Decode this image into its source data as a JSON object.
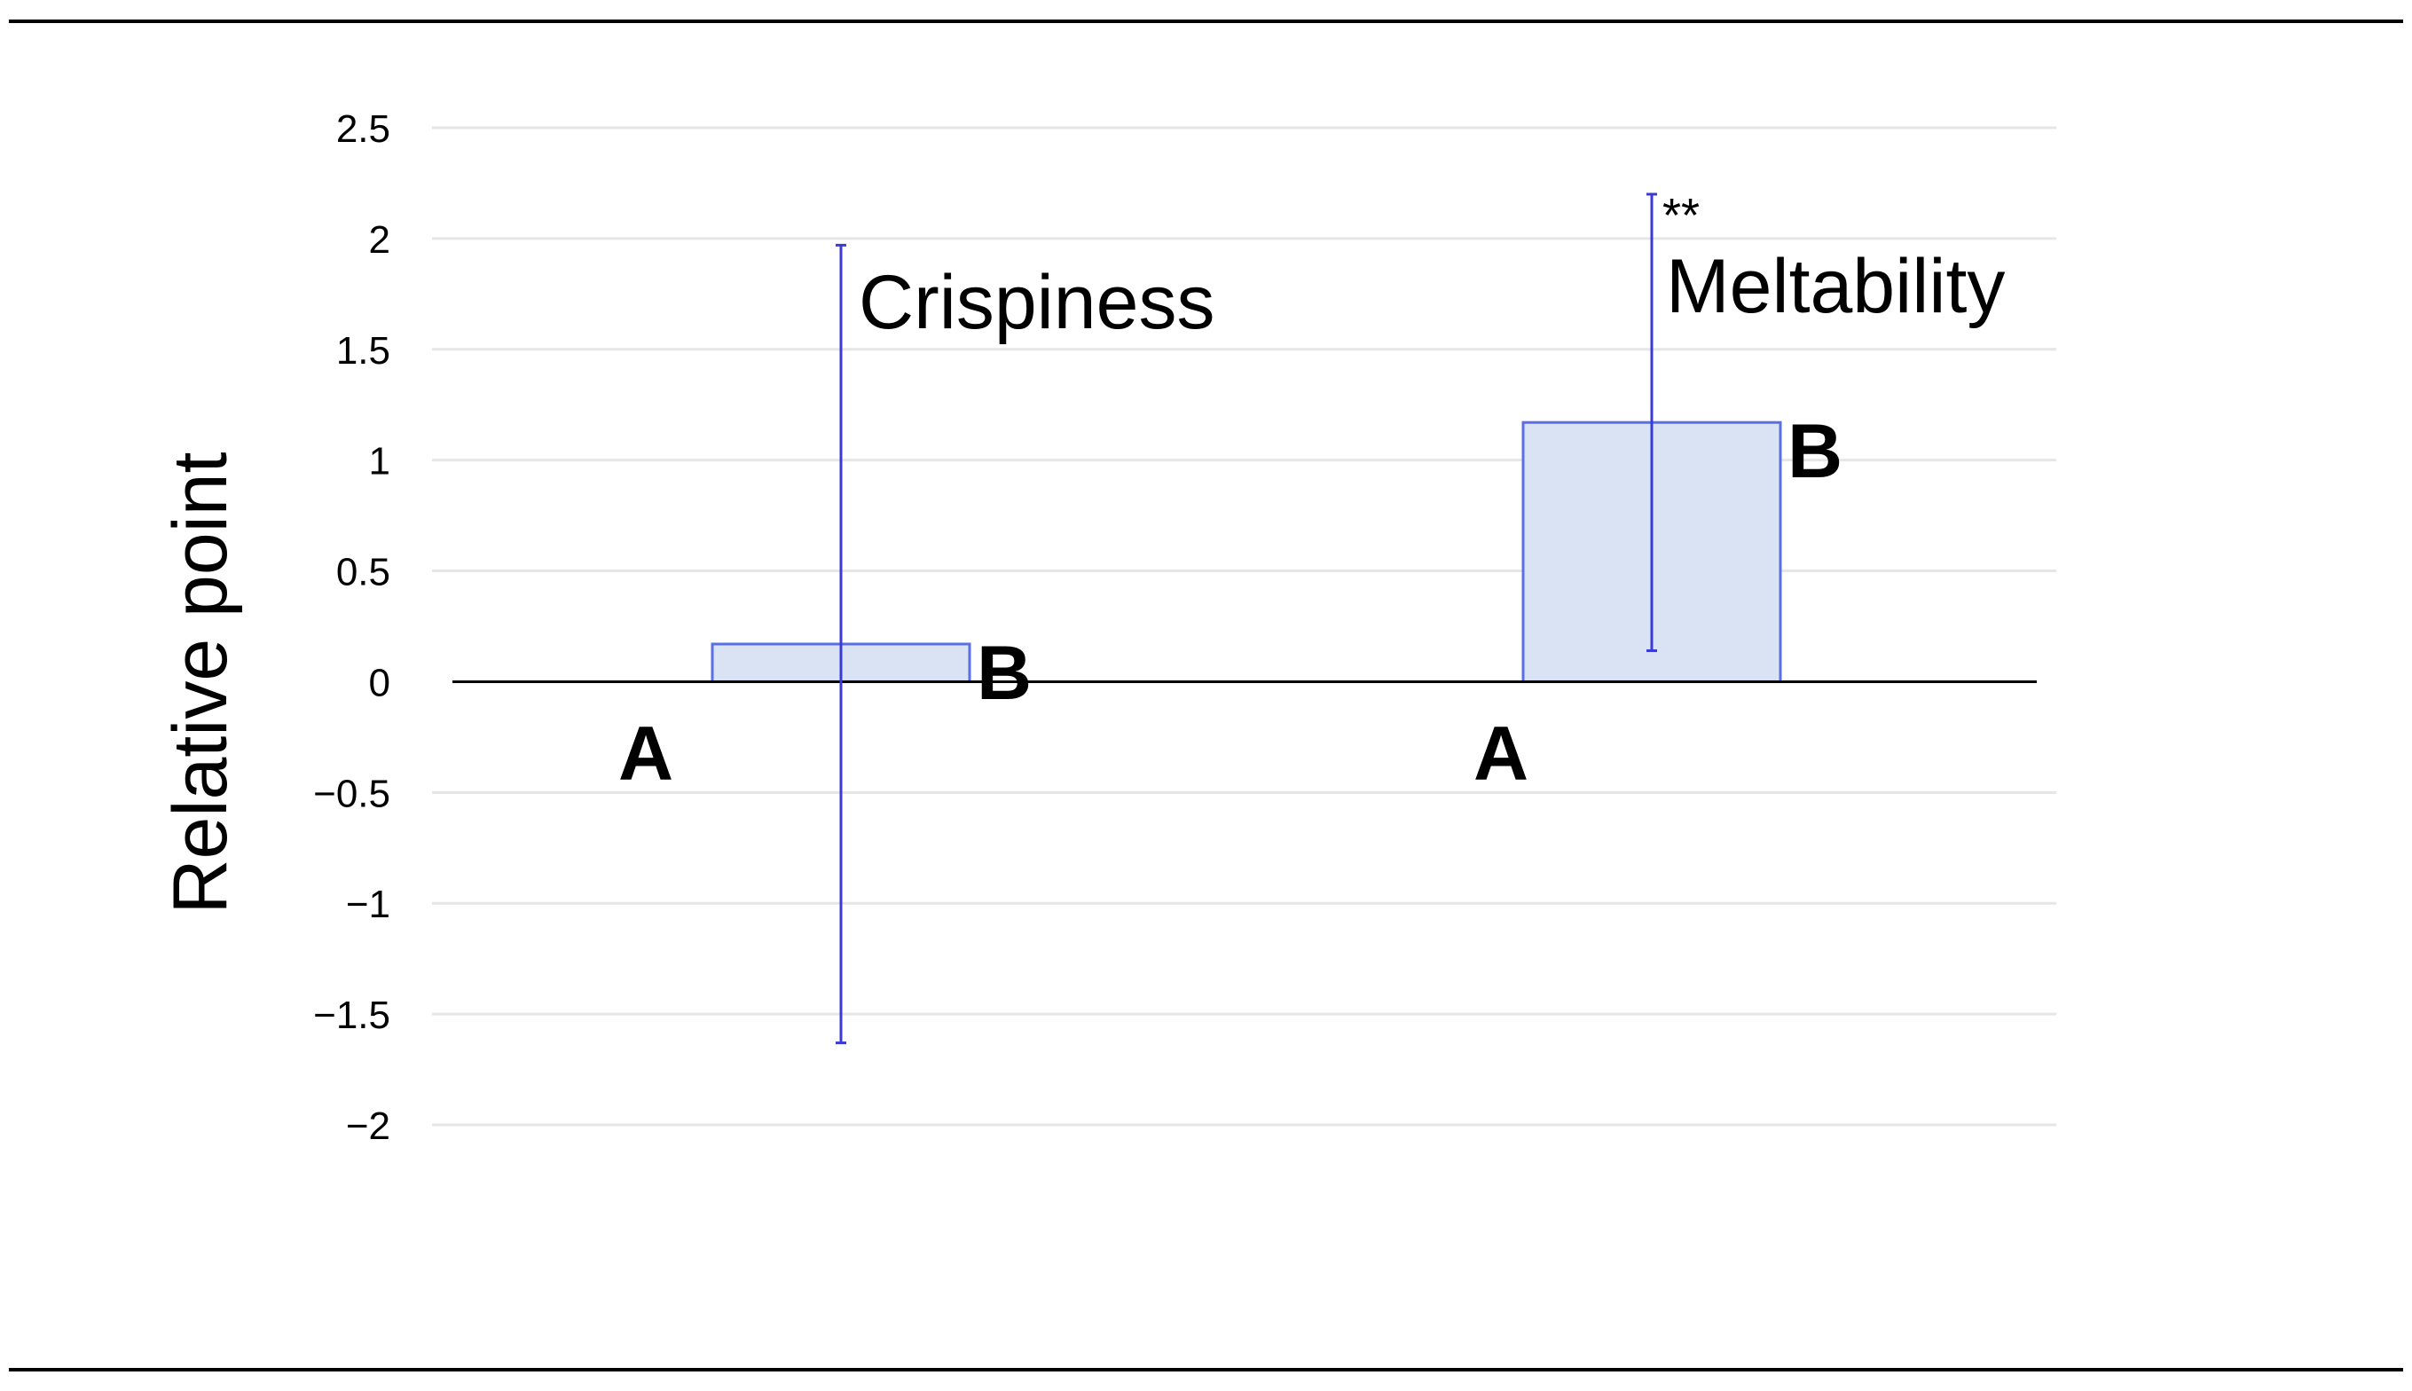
{
  "chart_data": {
    "type": "bar",
    "title": "",
    "xlabel": "",
    "ylabel": "Relative point",
    "ylim": [
      -2,
      2.5
    ],
    "yticks": [
      {
        "value": 2.5,
        "label": "2.5"
      },
      {
        "value": 2,
        "label": "2"
      },
      {
        "value": 1.5,
        "label": "1.5"
      },
      {
        "value": 1,
        "label": "1"
      },
      {
        "value": 0.5,
        "label": "0.5"
      },
      {
        "value": 0,
        "label": "0"
      },
      {
        "value": -0.5,
        "label": "−0.5"
      },
      {
        "value": -1,
        "label": "−1"
      },
      {
        "value": -1.5,
        "label": "−1.5"
      },
      {
        "value": -2,
        "label": "−2"
      }
    ],
    "grid": true,
    "groups": [
      {
        "label": "Crispiness",
        "significance": "",
        "bars": [
          {
            "label": "A",
            "value": 0,
            "error_low": null,
            "error_high": null
          },
          {
            "label": "B",
            "value": 0.17,
            "error_low": -1.63,
            "error_high": 1.97
          }
        ]
      },
      {
        "label": "Meltability",
        "significance": "**",
        "bars": [
          {
            "label": "A",
            "value": 0,
            "error_low": null,
            "error_high": null
          },
          {
            "label": "B",
            "value": 1.17,
            "error_low": 0.14,
            "error_high": 2.2
          }
        ]
      }
    ],
    "colors": {
      "bar_fill": "#dae3f3",
      "bar_stroke": "#5a6ee6",
      "error_bar": "#3a3ad6",
      "grid": "#e6e6e6",
      "axis": "#000000",
      "text": "#000000"
    }
  }
}
